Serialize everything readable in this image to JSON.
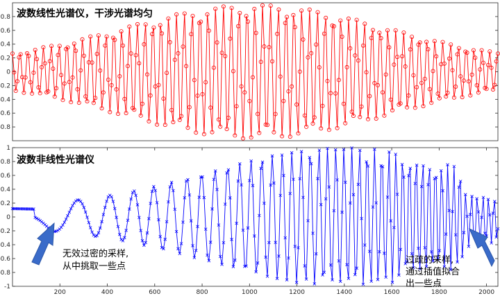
{
  "chart_data": [
    {
      "type": "line",
      "title": "波数线性光谱仪，干涉光谱均匀",
      "marker": "circle",
      "color": "#ff0000",
      "xlim": [
        0,
        2048
      ],
      "ylim": [
        -1,
        1
      ],
      "yticks": [
        -0.8,
        -0.6,
        -0.4,
        -0.2,
        0,
        0.2,
        0.4,
        0.6,
        0.8
      ],
      "ytick_labels": [
        "-0.8",
        "-0.6",
        "-0.4",
        "-0.2",
        "0",
        "0.2",
        "0.4",
        "0.6",
        "0.8"
      ],
      "series": [
        {
          "x_start": 0,
          "x_end": 2048,
          "sample_count": 300,
          "oscillation_cycles": 62,
          "envelope_center": 1024,
          "envelope_sigma": 560,
          "envelope_peak": 0.97,
          "note_values": "y ≈ envelope(x)·cos(2π·cycles·x/2048); x uniformly sampled"
        }
      ]
    },
    {
      "type": "line",
      "title": "波数非线性光谱仪",
      "marker": "x",
      "color": "#0000ff",
      "xlim": [
        0,
        2048
      ],
      "ylim": [
        -1,
        1
      ],
      "xticks": [
        200,
        400,
        600,
        800,
        1000,
        1200,
        1400,
        1600,
        1800,
        2000
      ],
      "xtick_labels": [
        "200",
        "400",
        "600",
        "800",
        "1000",
        "1200",
        "1400",
        "1600",
        "1800",
        "2000"
      ],
      "yticks": [
        -1,
        -0.8,
        -0.6,
        -0.4,
        -0.2,
        0,
        0.2,
        0.4,
        0.6,
        0.8,
        1
      ],
      "ytick_labels": [
        "-1",
        "-0.8",
        "-0.6",
        "-0.4",
        "-0.2",
        "0",
        "0.2",
        "0.4",
        "0.6",
        "0.8",
        "1"
      ],
      "series": [
        {
          "x_start": 0,
          "x_end": 2048,
          "sample_count": 300,
          "start_value": 0.12,
          "first_trough_x": 230,
          "first_trough_value": -0.13,
          "envelope_center": 1400,
          "envelope_sigma": 560,
          "envelope_peak": 1.0,
          "end_value": -0.1,
          "note_values": "chirped oscillation: frequency increases with x"
        }
      ],
      "annotations": [
        {
          "text": [
            "无效过密的采样,",
            "从中挑取一些点"
          ],
          "arrow_target_x": 230,
          "arrow_target_y": -0.1
        },
        {
          "text": [
            "过疏的采样,",
            "通过插值拟合",
            "出一些点"
          ],
          "arrow_target_x": 1930,
          "arrow_target_y": -0.1
        }
      ]
    }
  ]
}
